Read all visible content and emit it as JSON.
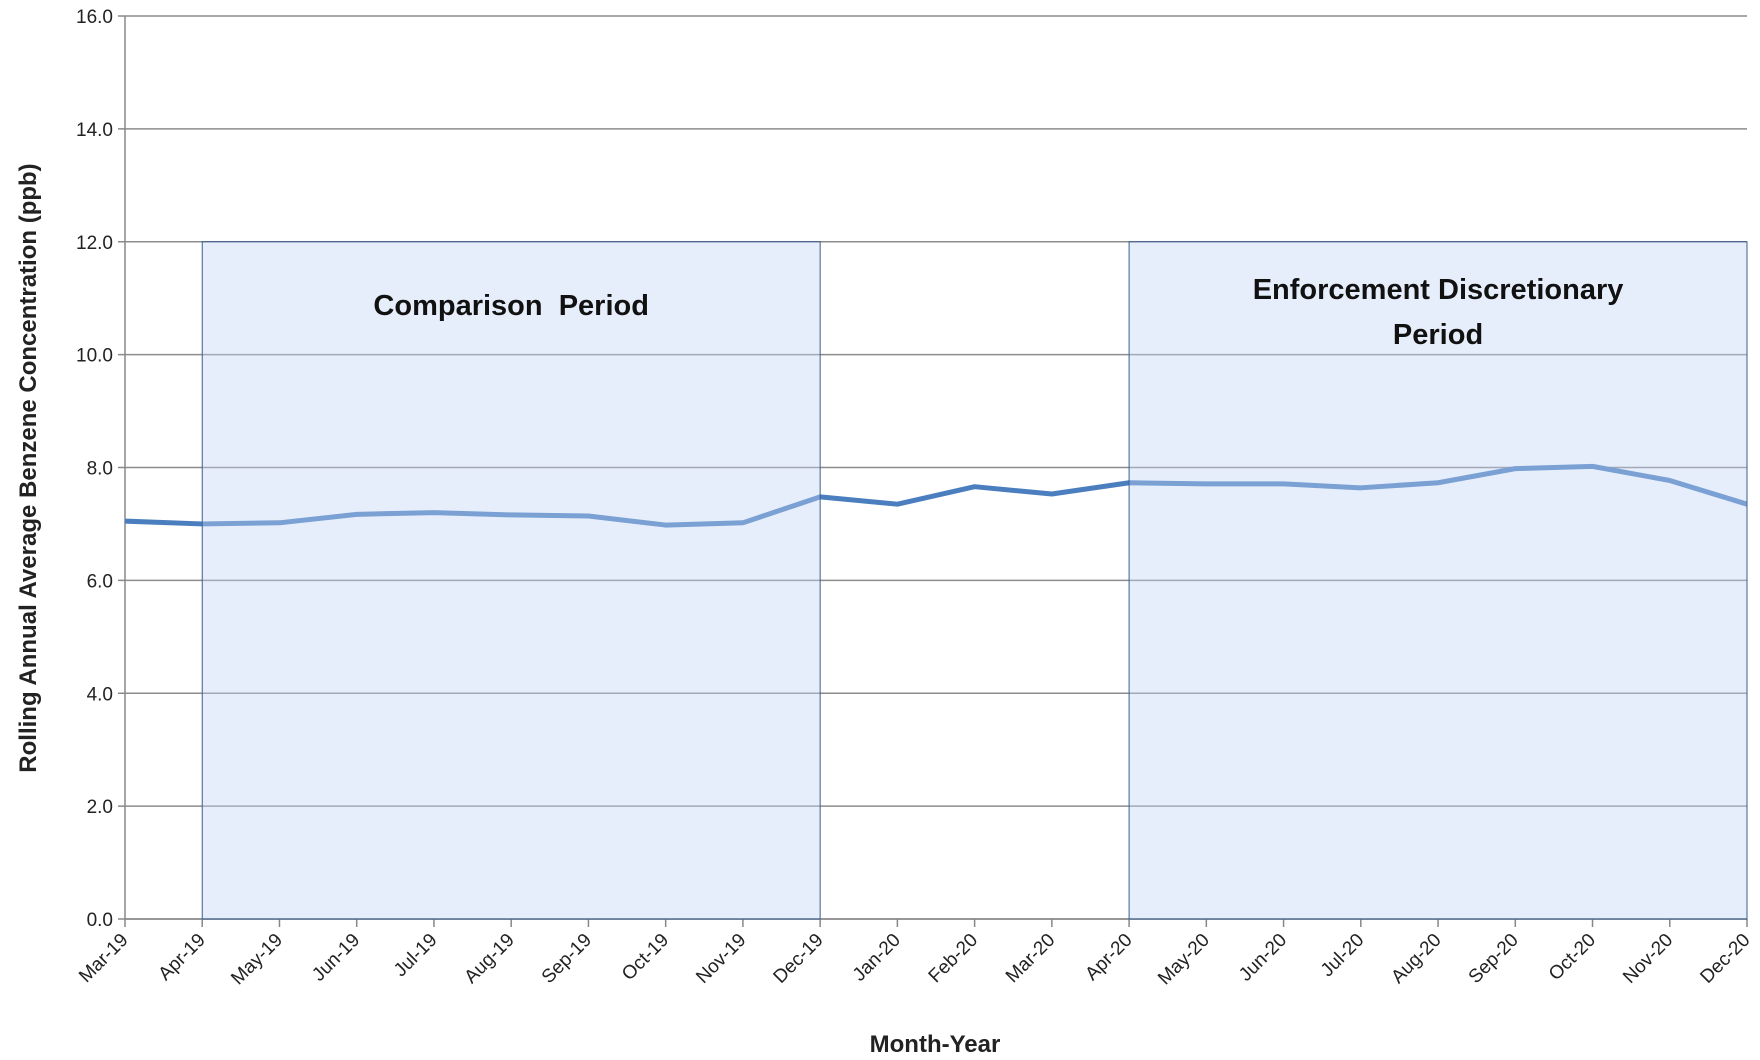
{
  "chart_data": {
    "type": "line",
    "xlabel": "Month-Year",
    "ylabel": "Rolling Annual Average Benzene Concentration (ppb)",
    "categories": [
      "Mar-19",
      "Apr-19",
      "May-19",
      "Jun-19",
      "Jul-19",
      "Aug-19",
      "Sep-19",
      "Oct-19",
      "Nov-19",
      "Dec-19",
      "Jan-20",
      "Feb-20",
      "Mar-20",
      "Apr-20",
      "May-20",
      "Jun-20",
      "Jul-20",
      "Aug-20",
      "Sep-20",
      "Oct-20",
      "Nov-20",
      "Dec-20"
    ],
    "values": [
      7.05,
      7.0,
      7.02,
      7.17,
      7.2,
      7.16,
      7.14,
      6.98,
      7.02,
      7.48,
      7.35,
      7.66,
      7.53,
      7.73,
      7.71,
      7.71,
      7.64,
      7.73,
      7.98,
      8.02,
      7.77,
      7.35
    ],
    "color": "#4a7ebf",
    "ylim": [
      0,
      16
    ],
    "yticks": [
      {
        "value": 0,
        "label": "0.0"
      },
      {
        "value": 2,
        "label": "2.0"
      },
      {
        "value": 4,
        "label": "4.0"
      },
      {
        "value": 6,
        "label": "6.0"
      },
      {
        "value": 8,
        "label": "8.0"
      },
      {
        "value": 10,
        "label": "10.0"
      },
      {
        "value": 12,
        "label": "12.0"
      },
      {
        "value": 14,
        "label": "14.0"
      },
      {
        "value": 16,
        "label": "16.0"
      }
    ],
    "grid": true,
    "regions": [
      {
        "label": "Comparison  Period",
        "start": "Apr-19",
        "end": "Dec-19",
        "ymax": 12
      },
      {
        "label": "Enforcement Discretionary Period",
        "start": "Apr-20",
        "end": "Dec-20",
        "ymax": 12
      }
    ]
  }
}
